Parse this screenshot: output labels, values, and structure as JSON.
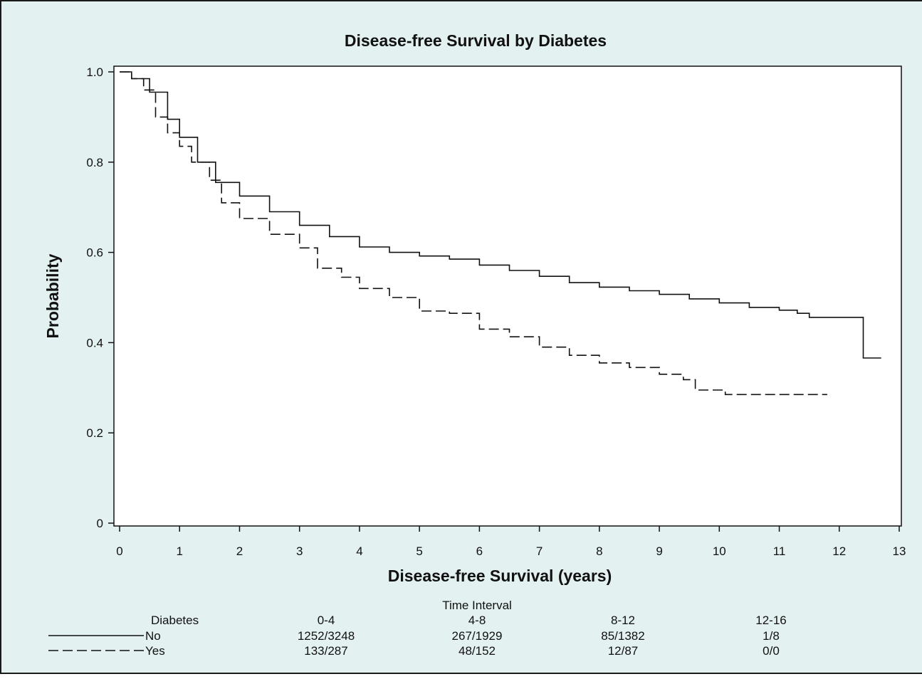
{
  "chart_data": {
    "type": "line",
    "title": "Disease-free Survival by Diabetes",
    "xlabel": "Disease-free Survival (years)",
    "ylabel": "Probability",
    "xlim": [
      0,
      13
    ],
    "ylim": [
      0,
      1
    ],
    "x_ticks": [
      "0",
      "1",
      "2",
      "3",
      "4",
      "5",
      "6",
      "7",
      "8",
      "9",
      "10",
      "11",
      "12",
      "13"
    ],
    "y_ticks": [
      "0",
      "0.2",
      "0.4",
      "0.6",
      "0.8",
      "1.0"
    ],
    "grid": false,
    "step": true,
    "series": [
      {
        "name": "No",
        "dash": "solid",
        "points": [
          [
            0,
            1.0
          ],
          [
            0.2,
            0.985
          ],
          [
            0.5,
            0.955
          ],
          [
            0.8,
            0.895
          ],
          [
            1.0,
            0.855
          ],
          [
            1.3,
            0.8
          ],
          [
            1.6,
            0.755
          ],
          [
            2.0,
            0.725
          ],
          [
            2.5,
            0.69
          ],
          [
            3.0,
            0.66
          ],
          [
            3.5,
            0.635
          ],
          [
            4.0,
            0.612
          ],
          [
            4.5,
            0.6
          ],
          [
            5.0,
            0.592
          ],
          [
            5.5,
            0.585
          ],
          [
            6.0,
            0.572
          ],
          [
            6.5,
            0.56
          ],
          [
            7.0,
            0.547
          ],
          [
            7.5,
            0.533
          ],
          [
            8.0,
            0.523
          ],
          [
            8.5,
            0.515
          ],
          [
            9.0,
            0.507
          ],
          [
            9.5,
            0.497
          ],
          [
            10.0,
            0.488
          ],
          [
            10.5,
            0.478
          ],
          [
            11.0,
            0.472
          ],
          [
            11.3,
            0.465
          ],
          [
            11.5,
            0.456
          ],
          [
            12.4,
            0.456
          ],
          [
            12.4,
            0.366
          ],
          [
            12.7,
            0.366
          ]
        ]
      },
      {
        "name": "Yes",
        "dash": "dashed",
        "points": [
          [
            0,
            1.0
          ],
          [
            0.2,
            0.985
          ],
          [
            0.4,
            0.96
          ],
          [
            0.6,
            0.9
          ],
          [
            0.8,
            0.865
          ],
          [
            1.0,
            0.835
          ],
          [
            1.2,
            0.8
          ],
          [
            1.5,
            0.76
          ],
          [
            1.7,
            0.71
          ],
          [
            2.0,
            0.675
          ],
          [
            2.5,
            0.64
          ],
          [
            3.0,
            0.61
          ],
          [
            3.3,
            0.565
          ],
          [
            3.7,
            0.545
          ],
          [
            4.0,
            0.52
          ],
          [
            4.5,
            0.5
          ],
          [
            5.0,
            0.47
          ],
          [
            5.5,
            0.465
          ],
          [
            6.0,
            0.43
          ],
          [
            6.5,
            0.413
          ],
          [
            7.0,
            0.39
          ],
          [
            7.5,
            0.372
          ],
          [
            8.0,
            0.355
          ],
          [
            8.5,
            0.345
          ],
          [
            9.0,
            0.33
          ],
          [
            9.4,
            0.318
          ],
          [
            9.6,
            0.295
          ],
          [
            10.1,
            0.285
          ],
          [
            11.8,
            0.285
          ]
        ]
      }
    ],
    "risk_table": {
      "header": "Time Interval",
      "row_header": "Diabetes",
      "intervals": [
        "0-4",
        "4-8",
        "8-12",
        "12-16"
      ],
      "rows": [
        {
          "label": "No",
          "values": [
            "1252/3248",
            "267/1929",
            "85/1382",
            "1/8"
          ]
        },
        {
          "label": "Yes",
          "values": [
            "133/287",
            "48/152",
            "12/87",
            "0/0"
          ]
        }
      ]
    }
  }
}
